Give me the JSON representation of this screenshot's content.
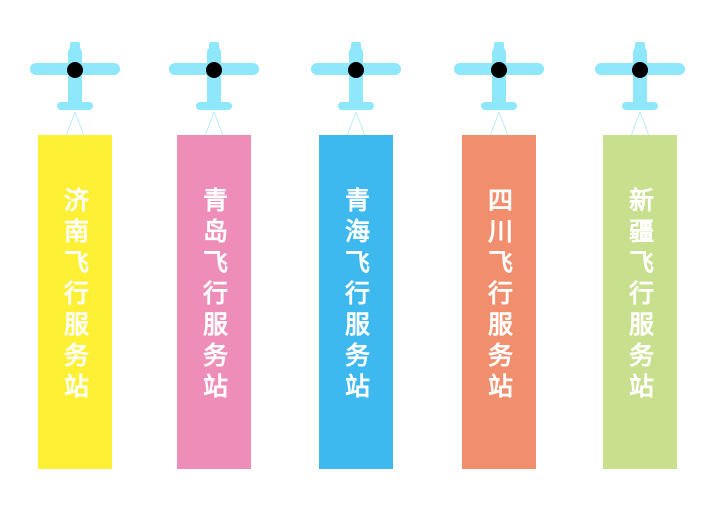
{
  "stations": [
    {
      "label": "济南飞行服务站",
      "color": "#fef035"
    },
    {
      "label": "青岛飞行服务站",
      "color": "#ee8db8"
    },
    {
      "label": "青海飞行服务站",
      "color": "#3db9ef"
    },
    {
      "label": "四川飞行服务站",
      "color": "#f08e6e"
    },
    {
      "label": "新疆飞行服务站",
      "color": "#c8e08e"
    }
  ],
  "icons": {
    "plane": "airplane-icon",
    "plane_color": "#8ee7fb",
    "hub_color": "#000000",
    "string_color": "#b9edf9"
  }
}
